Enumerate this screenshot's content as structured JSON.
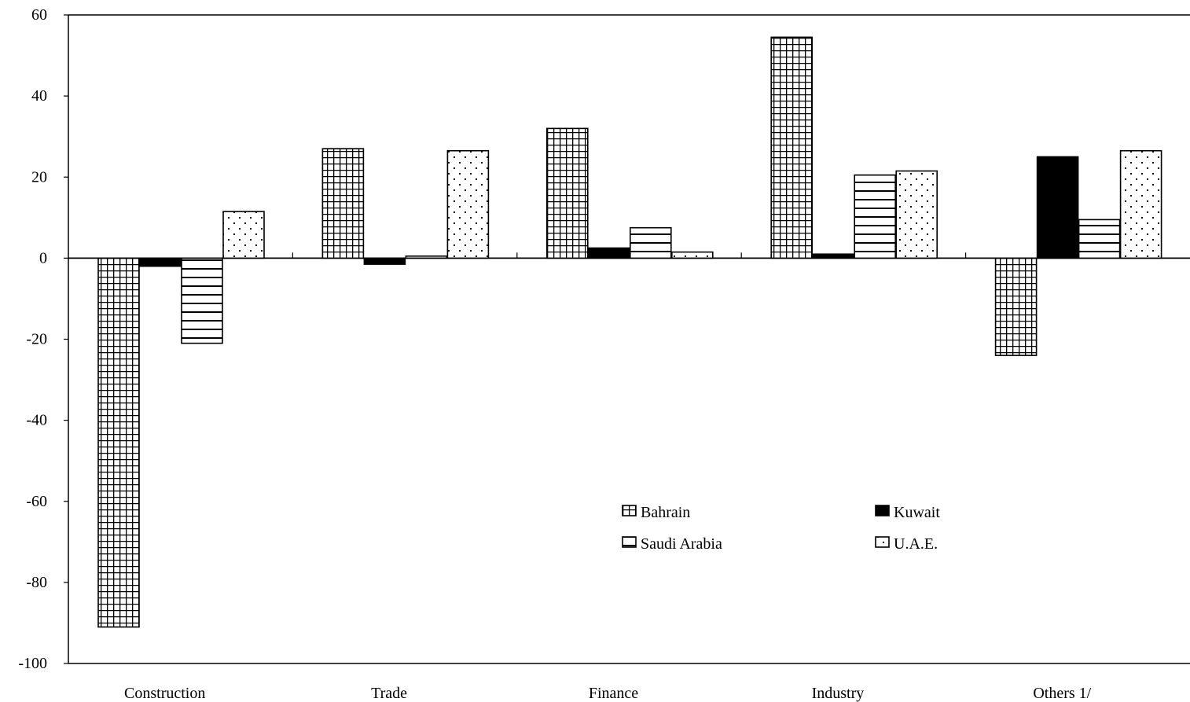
{
  "chart_data": {
    "type": "bar",
    "categories": [
      "Construction",
      "Trade",
      "Finance",
      "Industry",
      "Others 1/"
    ],
    "series": [
      {
        "name": "Bahrain",
        "pattern": "grid",
        "values": [
          -91,
          27,
          32,
          54.5,
          -24
        ]
      },
      {
        "name": "Kuwait",
        "pattern": "solid",
        "values": [
          -2,
          -1.5,
          2.5,
          1,
          25
        ]
      },
      {
        "name": "Saudi Arabia",
        "pattern": "hlines",
        "values": [
          -21,
          0.5,
          7.5,
          20.5,
          9.5
        ]
      },
      {
        "name": "U.A.E.",
        "pattern": "dots",
        "values": [
          11.5,
          26.5,
          1.5,
          21.5,
          26.5
        ]
      }
    ],
    "yticks": [
      "60",
      "40",
      "20",
      "0",
      "-20",
      "-40",
      "-60",
      "-80",
      "-100"
    ],
    "ylim": [
      -100,
      60
    ],
    "ytick_step": 20,
    "title": "",
    "xlabel": "",
    "ylabel": "",
    "grid": false,
    "legend_position": "bottom-right, two columns",
    "colors": {
      "ink": "#000000",
      "background": "#ffffff"
    }
  }
}
